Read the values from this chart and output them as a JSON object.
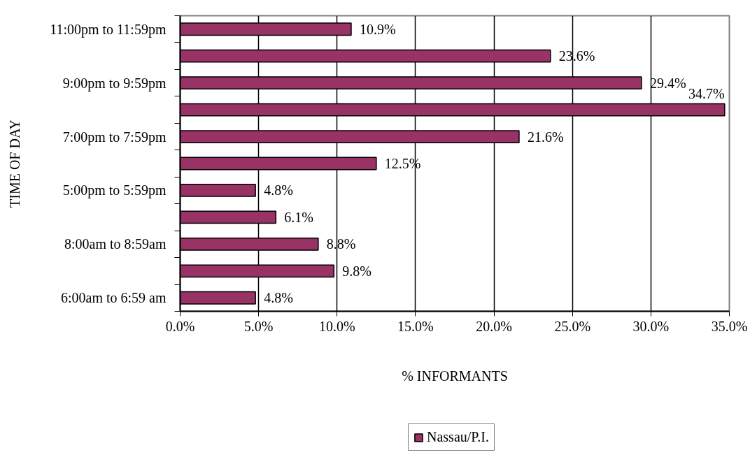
{
  "chart_data": {
    "type": "bar",
    "orientation": "horizontal",
    "xlabel": "% INFORMANTS",
    "ylabel": "TIME OF DAY",
    "categories": [
      "11:00pm to 11:59pm",
      null,
      "9:00pm to 9:59pm",
      null,
      "7:00pm to 7:59pm",
      null,
      "5:00pm to 5:59pm",
      null,
      "8:00am to 8:59am",
      null,
      "6:00am to 6:59 am"
    ],
    "series": [
      {
        "name": "Nassau/P.I.",
        "color": "#993366",
        "values": [
          10.9,
          23.6,
          29.4,
          34.7,
          21.6,
          12.5,
          4.8,
          6.1,
          8.8,
          9.8,
          4.8
        ],
        "value_labels": [
          "10.9%",
          "23.6%",
          "29.4%",
          "34.7%",
          "21.6%",
          "12.5%",
          "4.8%",
          "6.1%",
          "8.8%",
          "9.8%",
          "4.8%"
        ]
      }
    ],
    "xlim": [
      0,
      35
    ],
    "xticks": [
      {
        "value": 0,
        "label": "0.0%"
      },
      {
        "value": 5,
        "label": "5.0%"
      },
      {
        "value": 10,
        "label": "10.0%"
      },
      {
        "value": 15,
        "label": "15.0%"
      },
      {
        "value": 20,
        "label": "20.0%"
      },
      {
        "value": 25,
        "label": "25.0%"
      },
      {
        "value": 30,
        "label": "30.0%"
      },
      {
        "value": 35,
        "label": "35.0%"
      }
    ],
    "grid": "x",
    "legend": "bottom"
  }
}
